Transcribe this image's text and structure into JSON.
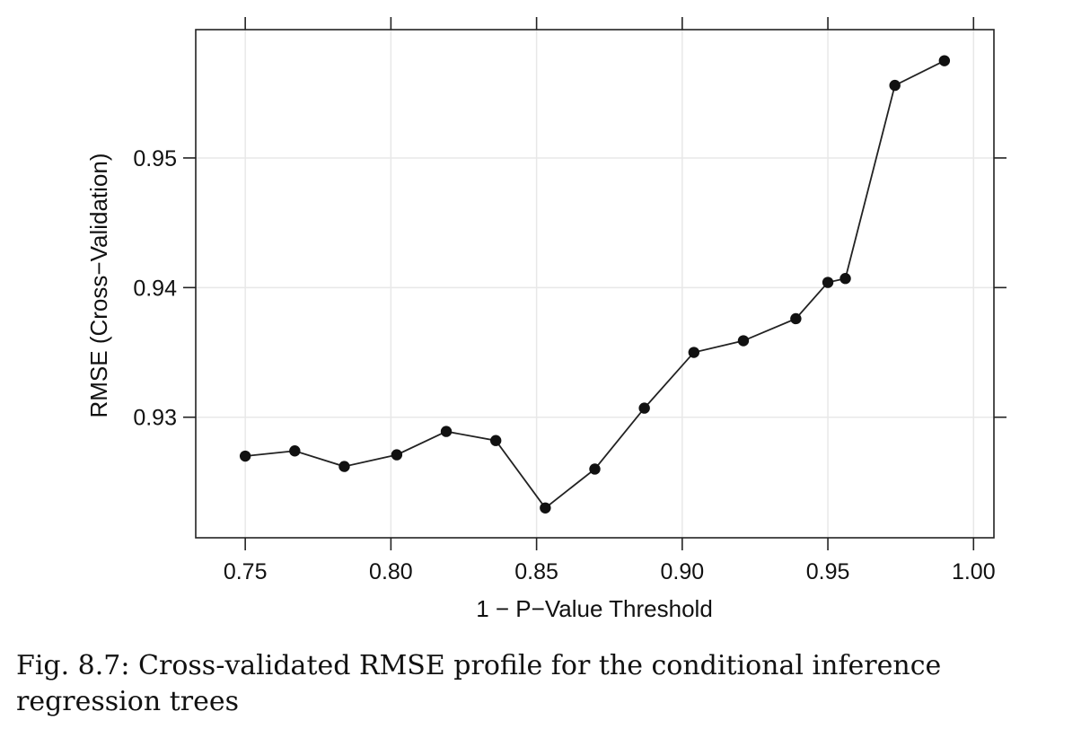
{
  "chart_data": {
    "type": "line",
    "title": "",
    "xlabel": "1 − P−Value Threshold",
    "ylabel": "RMSE (Cross−Validation)",
    "xlim": [
      0.733,
      1.007
    ],
    "ylim": [
      0.9207,
      0.9599
    ],
    "x_ticks": [
      0.75,
      0.8,
      0.85,
      0.9,
      0.95,
      1.0
    ],
    "x_tick_labels": [
      "0.75",
      "0.80",
      "0.85",
      "0.90",
      "0.95",
      "1.00"
    ],
    "y_ticks": [
      0.93,
      0.94,
      0.95
    ],
    "y_tick_labels": [
      "0.93",
      "0.94",
      "0.95"
    ],
    "grid": true,
    "series": [
      {
        "x": [
          0.75,
          0.767,
          0.784,
          0.802,
          0.819,
          0.836,
          0.853,
          0.87,
          0.887,
          0.904,
          0.921,
          0.939,
          0.95,
          0.956,
          0.973,
          0.99
        ],
        "y": [
          0.927,
          0.9274,
          0.9262,
          0.9271,
          0.9289,
          0.9282,
          0.923,
          0.926,
          0.9307,
          0.935,
          0.9359,
          0.9376,
          0.9404,
          0.9407,
          0.9556,
          0.9575
        ]
      }
    ],
    "colors": {
      "line": "#222222",
      "marker": "#111111",
      "grid": "#e8e8e8",
      "frame": "#222222"
    }
  },
  "caption": "Fig. 8.7: Cross-validated RMSE profile for the conditional inference regression trees"
}
